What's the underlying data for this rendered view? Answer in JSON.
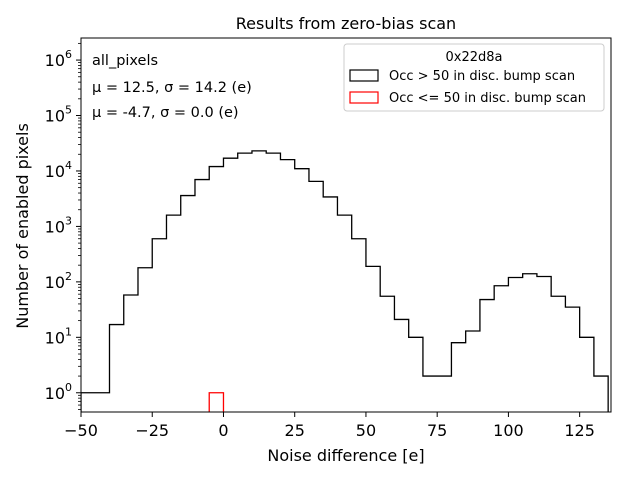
{
  "chart_data": {
    "type": "histogram",
    "title": "Results from zero-bias scan",
    "xlabel": "Noise difference [e]",
    "ylabel": "Number of enabled pixels",
    "y_scale": "log",
    "xlim": [
      -50,
      136
    ],
    "ylim": [
      0.45,
      2500000
    ],
    "x_ticks": [
      -50,
      -25,
      0,
      25,
      50,
      75,
      100,
      125
    ],
    "x_tick_labels": [
      "−50",
      "−25",
      "0",
      "25",
      "50",
      "75",
      "100",
      "125"
    ],
    "y_ticks": [
      1,
      10,
      100,
      1000,
      10000,
      100000,
      1000000
    ],
    "y_tick_labels": [
      {
        "base": "10",
        "exp": "0"
      },
      {
        "base": "10",
        "exp": "1"
      },
      {
        "base": "10",
        "exp": "2"
      },
      {
        "base": "10",
        "exp": "3"
      },
      {
        "base": "10",
        "exp": "4"
      },
      {
        "base": "10",
        "exp": "5"
      },
      {
        "base": "10",
        "exp": "6"
      }
    ],
    "annotations": [
      {
        "text": "all_pixels",
        "color": "#000000"
      },
      {
        "text": "μ = 12.5, σ = 14.2 (e)",
        "color": "#000000"
      },
      {
        "text": "μ = -4.7, σ = 0.0 (e)",
        "color": "#ff0000"
      }
    ],
    "legend": {
      "title": "0x22d8a",
      "placement": "top-right",
      "entries": [
        {
          "label": "Occ > 50 in disc. bump scan",
          "color": "#000000"
        },
        {
          "label": "Occ <= 50 in disc. bump scan",
          "color": "#ff0000"
        }
      ]
    },
    "series": [
      {
        "name": "Occ > 50 in disc. bump scan",
        "color": "#000000",
        "bin_edges": [
          -50,
          -45,
          -40,
          -35,
          -30,
          -25,
          -20,
          -15,
          -10,
          -5,
          0,
          5,
          10,
          15,
          20,
          25,
          30,
          35,
          40,
          45,
          50,
          55,
          60,
          65,
          70,
          75,
          80,
          85,
          90,
          95,
          100,
          105,
          110,
          115,
          120,
          125,
          130,
          135
        ],
        "counts": [
          1,
          1,
          17,
          58,
          180,
          600,
          1600,
          3600,
          7000,
          12000,
          17000,
          21000,
          23000,
          21000,
          16000,
          11000,
          6500,
          3400,
          1600,
          600,
          190,
          55,
          21,
          10,
          2,
          2,
          8,
          13,
          48,
          85,
          120,
          140,
          125,
          55,
          35,
          10,
          2
        ]
      },
      {
        "name": "Occ <= 50 in disc. bump scan",
        "color": "#ff0000",
        "bin_edges": [
          -5,
          0
        ],
        "counts": [
          1
        ]
      }
    ]
  }
}
